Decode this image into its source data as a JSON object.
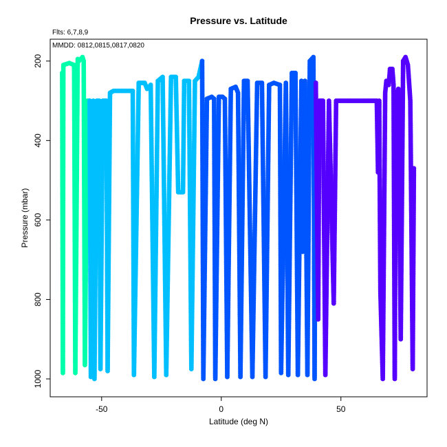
{
  "chart_data": {
    "type": "scatter",
    "title": "Pressure vs. Latitude",
    "notes": [
      "Flts: 6,7,8,9",
      "MMDD: 0812,0815,0817,0820"
    ],
    "xlabel": "Latitude (deg N)",
    "ylabel": "Pressure (mbar)",
    "xlim": [
      -71.5,
      86
    ],
    "ylim": [
      1045,
      145
    ],
    "y_reversed": true,
    "x_ticks": [
      -50,
      0,
      50
    ],
    "y_ticks": [
      200,
      400,
      600,
      800,
      1000
    ],
    "grid": false,
    "legend": "none",
    "series": [
      {
        "color": "#00ffaa",
        "points": [
          [
            -66.5,
            230
          ],
          [
            -66.2,
            985
          ],
          [
            -66.0,
            210
          ],
          [
            -63.5,
            205
          ],
          [
            -61.5,
            210
          ],
          [
            -61.0,
            985
          ],
          [
            -60.0,
            195
          ],
          [
            -59.5,
            200
          ],
          [
            -58.0,
            190
          ],
          [
            -57.5,
            200
          ],
          [
            -57.0,
            965
          ],
          [
            -56.0,
            300
          ],
          [
            -55.0,
            300
          ]
        ]
      },
      {
        "color": "#00bfff",
        "points": [
          [
            -55.0,
            300
          ],
          [
            -54.5,
            995
          ],
          [
            -53.5,
            300
          ],
          [
            -53.0,
            1000
          ],
          [
            -52.0,
            300
          ],
          [
            -51.0,
            300
          ],
          [
            -50.5,
            975
          ],
          [
            -49.5,
            300
          ],
          [
            -48.0,
            300
          ],
          [
            -47.5,
            980
          ],
          [
            -46.5,
            280
          ],
          [
            -45.0,
            275
          ],
          [
            -41.0,
            275
          ],
          [
            -37.0,
            275
          ],
          [
            -36.5,
            990
          ],
          [
            -34.5,
            255
          ],
          [
            -32.0,
            255
          ],
          [
            -31.0,
            270
          ],
          [
            -29.5,
            260
          ],
          [
            -28.0,
            995
          ],
          [
            -26.5,
            250
          ],
          [
            -24.5,
            240
          ],
          [
            -23.0,
            990
          ],
          [
            -21.0,
            240
          ],
          [
            -19.0,
            240
          ],
          [
            -18.0,
            530
          ],
          [
            -16.0,
            530
          ],
          [
            -15.5,
            250
          ],
          [
            -13.5,
            250
          ],
          [
            -12.5,
            975
          ],
          [
            -11.0,
            250
          ],
          [
            -9.5,
            240
          ],
          [
            -8.0,
            200
          ]
        ]
      },
      {
        "color": "#0055ff",
        "points": [
          [
            -8.0,
            200
          ],
          [
            -7.5,
            1000
          ],
          [
            -6.0,
            295
          ],
          [
            -4.0,
            290
          ],
          [
            -3.0,
            295
          ],
          [
            -2.5,
            1000
          ],
          [
            -1.0,
            290
          ],
          [
            0.5,
            290
          ],
          [
            1.5,
            295
          ],
          [
            2.5,
            995
          ],
          [
            4.0,
            270
          ],
          [
            6.0,
            265
          ],
          [
            7.0,
            280
          ],
          [
            8.0,
            995
          ],
          [
            9.5,
            250
          ],
          [
            11.0,
            250
          ],
          [
            13.0,
            995
          ],
          [
            15.0,
            255
          ],
          [
            17.0,
            255
          ],
          [
            18.5,
            995
          ],
          [
            20.0,
            260
          ],
          [
            22.0,
            255
          ],
          [
            24.5,
            260
          ],
          [
            25.0,
            985
          ],
          [
            27.0,
            255
          ],
          [
            28.0,
            990
          ],
          [
            29.5,
            230
          ],
          [
            31.0,
            230
          ],
          [
            32.0,
            990
          ],
          [
            33.5,
            250
          ],
          [
            34.0,
            680
          ],
          [
            35.0,
            250
          ],
          [
            36.0,
            990
          ],
          [
            37.0,
            200
          ],
          [
            38.5,
            190
          ],
          [
            39.0,
            1000
          ],
          [
            39.5,
            255
          ]
        ]
      },
      {
        "color": "#5500ff",
        "points": [
          [
            39.5,
            255
          ],
          [
            40.5,
            850
          ],
          [
            41.0,
            300
          ],
          [
            42.5,
            300
          ],
          [
            43.5,
            990
          ],
          [
            45.0,
            300
          ],
          [
            47.0,
            810
          ],
          [
            48.0,
            300
          ],
          [
            50.0,
            300
          ],
          [
            52.0,
            300
          ],
          [
            56.0,
            300
          ],
          [
            62.0,
            300
          ],
          [
            65.0,
            300
          ],
          [
            65.5,
            480
          ],
          [
            66.0,
            300
          ],
          [
            66.5,
            780
          ],
          [
            67.5,
            1000
          ],
          [
            68.5,
            280
          ],
          [
            69.0,
            250
          ],
          [
            70.0,
            260
          ],
          [
            70.5,
            220
          ],
          [
            71.5,
            220
          ],
          [
            72.0,
            260
          ],
          [
            72.5,
            1000
          ],
          [
            73.0,
            300
          ],
          [
            74.0,
            270
          ],
          [
            75.0,
            900
          ],
          [
            76.0,
            200
          ],
          [
            77.0,
            190
          ],
          [
            78.0,
            210
          ],
          [
            79.0,
            300
          ],
          [
            80.0,
            975
          ],
          [
            80.5,
            470
          ]
        ]
      }
    ]
  }
}
